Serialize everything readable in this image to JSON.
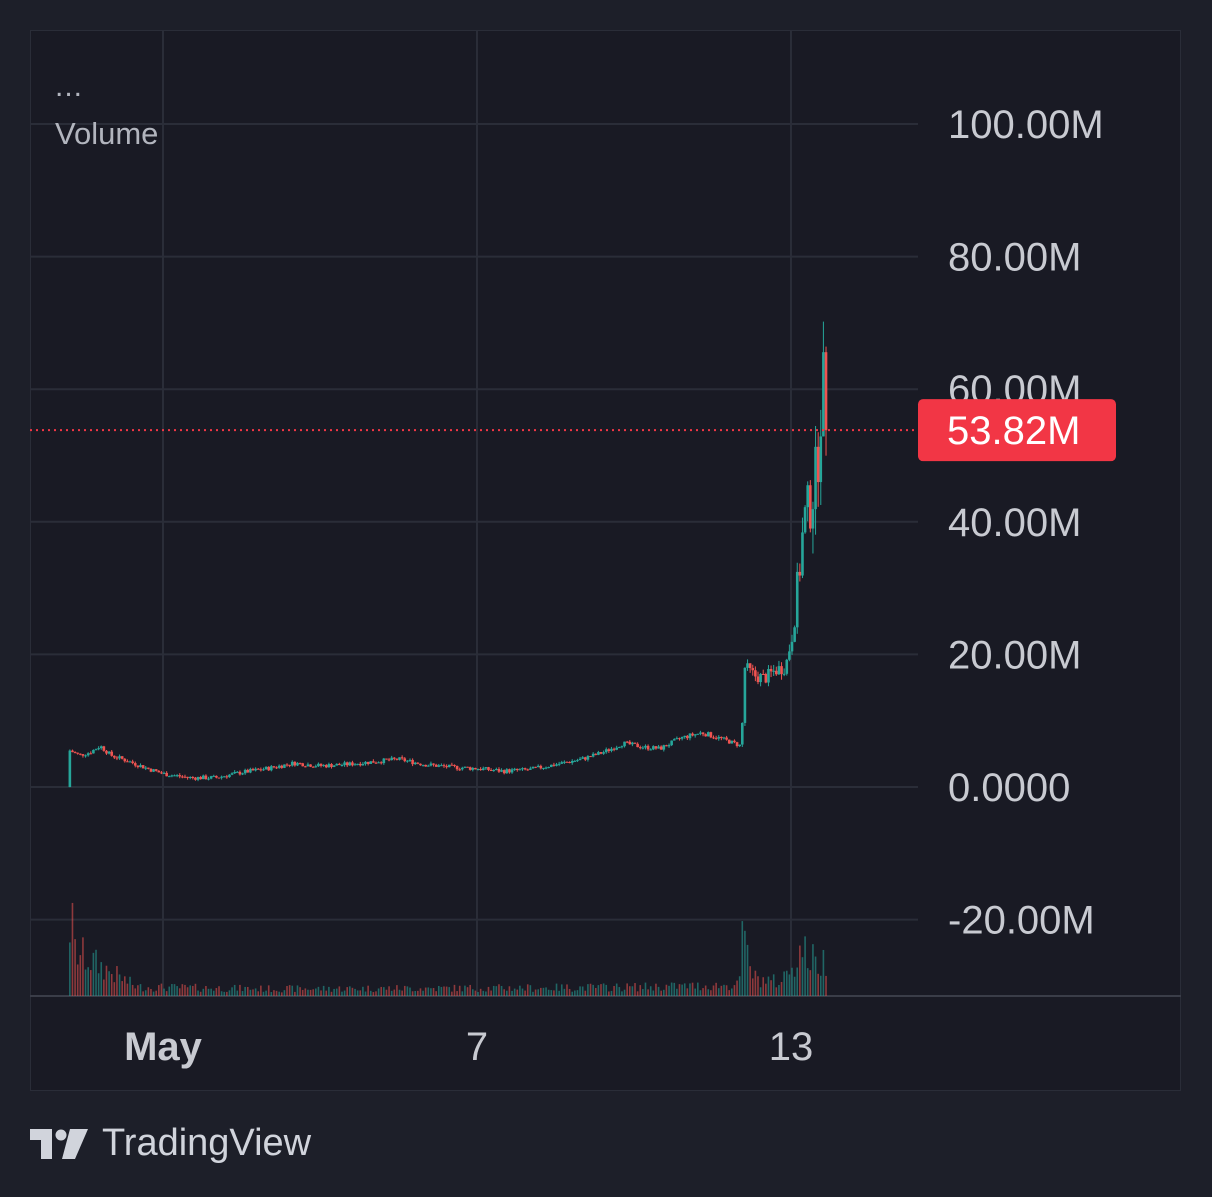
{
  "legend": {
    "menu_glyph": "...",
    "indicator": "Volume"
  },
  "brand": {
    "logo_icon": "tradingview-logo-icon",
    "name": "TradingView"
  },
  "colors": {
    "background": "#1d1f29",
    "pane": "#191a24",
    "grid": "#2a2d38",
    "up": "#26a69a",
    "down": "#ef5350",
    "label_bg": "#f23645",
    "axis_text": "#c8cad1"
  },
  "chart_data": {
    "type": "candlestick",
    "y_unit": "M",
    "ylim": [
      -30,
      100
    ],
    "y_ticks": [
      {
        "value": 100,
        "label": "100.00M"
      },
      {
        "value": 80,
        "label": "80.00M"
      },
      {
        "value": 60,
        "label": "60.00M"
      },
      {
        "value": 40,
        "label": "40.00M"
      },
      {
        "value": 20,
        "label": "20.00M"
      },
      {
        "value": 0,
        "label": "0.0000"
      },
      {
        "value": -20,
        "label": "-20.00M"
      }
    ],
    "x_ticks": [
      {
        "day": 1,
        "label": "May",
        "bold": true
      },
      {
        "day": 7,
        "label": "7",
        "bold": false
      },
      {
        "day": 13,
        "label": "13",
        "bold": false
      }
    ],
    "x_range_days": [
      -1.55,
      15.4
    ],
    "last_price": {
      "value": 53.82,
      "label": "53.82M"
    },
    "price_path": [
      [
        -0.83,
        0
      ],
      [
        -0.78,
        5.5
      ],
      [
        -0.6,
        4.8
      ],
      [
        -0.4,
        5.2
      ],
      [
        -0.2,
        6.2
      ],
      [
        0.0,
        4.8
      ],
      [
        0.3,
        4.0
      ],
      [
        0.7,
        2.8
      ],
      [
        1.0,
        2.0
      ],
      [
        1.5,
        1.4
      ],
      [
        2.0,
        1.4
      ],
      [
        2.5,
        2.2
      ],
      [
        3.0,
        2.8
      ],
      [
        3.5,
        3.6
      ],
      [
        4.0,
        3.2
      ],
      [
        4.5,
        3.4
      ],
      [
        5.0,
        3.8
      ],
      [
        5.5,
        4.2
      ],
      [
        6.0,
        3.4
      ],
      [
        6.5,
        3.0
      ],
      [
        7.0,
        2.8
      ],
      [
        7.5,
        2.4
      ],
      [
        8.0,
        2.6
      ],
      [
        8.5,
        3.4
      ],
      [
        9.0,
        4.2
      ],
      [
        9.4,
        5.2
      ],
      [
        9.8,
        6.6
      ],
      [
        10.2,
        6.0
      ],
      [
        10.5,
        5.8
      ],
      [
        10.9,
        7.4
      ],
      [
        11.3,
        8.2
      ],
      [
        11.7,
        7.2
      ],
      [
        12.05,
        6.2
      ],
      [
        12.12,
        18.0
      ],
      [
        12.3,
        16.8
      ],
      [
        12.5,
        16.4
      ],
      [
        12.7,
        17.6
      ],
      [
        12.9,
        18.2
      ],
      [
        13.05,
        24.0
      ],
      [
        13.15,
        32.0
      ],
      [
        13.25,
        40.0
      ],
      [
        13.38,
        43.0
      ],
      [
        13.5,
        48.0
      ],
      [
        13.6,
        62.0
      ],
      [
        13.68,
        53.82
      ]
    ],
    "volume_path": [
      [
        -0.83,
        3.0
      ],
      [
        -0.76,
        10.0
      ],
      [
        -0.7,
        5.0
      ],
      [
        -0.1,
        3.0
      ],
      [
        0.5,
        1.0
      ],
      [
        3.0,
        0.8
      ],
      [
        8.0,
        0.9
      ],
      [
        10.0,
        1.0
      ],
      [
        12.0,
        1.2
      ],
      [
        12.08,
        6.5
      ],
      [
        12.3,
        2.0
      ],
      [
        12.8,
        1.5
      ],
      [
        13.2,
        5.2
      ],
      [
        13.5,
        3.5
      ],
      [
        13.68,
        4.0
      ]
    ]
  }
}
